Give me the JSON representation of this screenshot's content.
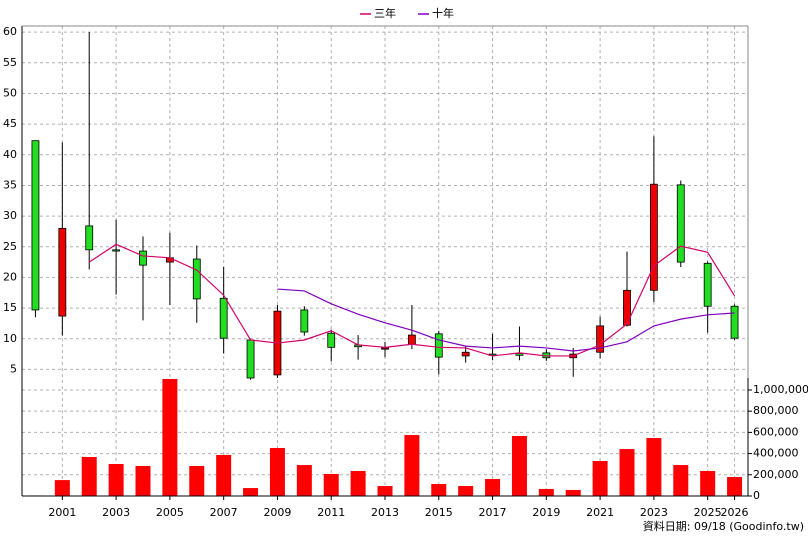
{
  "chart_data": [
    {
      "type": "candlestick",
      "legend": "top",
      "categories": [
        null,
        "2001",
        null,
        "2003",
        null,
        "2005",
        null,
        "2007",
        null,
        "2009",
        null,
        "2011",
        null,
        "2013",
        null,
        "2015",
        null,
        "2017",
        null,
        "2019",
        null,
        "2021",
        null,
        "2023",
        null,
        "2025",
        "2026"
      ],
      "open": [
        42.3,
        13.7,
        28.4,
        24.5,
        24.3,
        22.5,
        23.0,
        16.6,
        9.8,
        4.1,
        14.7,
        10.9,
        9.0,
        8.3,
        9.1,
        10.8,
        7.2,
        7.5,
        7.6,
        7.7,
        6.9,
        7.8,
        12.2,
        17.9,
        35.1,
        22.3,
        15.3
      ],
      "high": [
        42.3,
        42.0,
        60.0,
        29.4,
        26.7,
        27.3,
        25.2,
        21.7,
        10.0,
        15.5,
        15.3,
        11.5,
        10.6,
        9.5,
        15.5,
        11.3,
        8.8,
        10.8,
        12.0,
        8.3,
        8.5,
        13.6,
        24.2,
        43.0,
        35.8,
        22.6,
        15.6
      ],
      "low": [
        13.5,
        10.5,
        21.3,
        17.2,
        13.0,
        15.5,
        12.6,
        7.6,
        3.3,
        3.6,
        10.5,
        6.3,
        6.6,
        7.0,
        8.3,
        4.2,
        6.1,
        6.5,
        6.5,
        6.4,
        3.8,
        6.8,
        12.0,
        16.0,
        21.7,
        11.0,
        9.8
      ],
      "close": [
        14.7,
        28.0,
        24.5,
        24.3,
        22.0,
        23.2,
        16.5,
        10.1,
        3.6,
        14.5,
        11.1,
        8.6,
        8.7,
        8.5,
        10.6,
        7.0,
        7.8,
        7.3,
        7.3,
        6.9,
        7.5,
        12.1,
        17.9,
        35.2,
        22.5,
        15.3,
        10.1
      ],
      "up_color": "#ee0000",
      "down_color": "#22dd22",
      "series": [
        {
          "name": "三年",
          "color": "#d6006b",
          "values": [
            null,
            null,
            22.5,
            25.4,
            23.5,
            23.2,
            21.2,
            17.1,
            9.8,
            9.3,
            9.8,
            11.3,
            9.0,
            8.6,
            9.1,
            8.6,
            8.5,
            7.2,
            7.7,
            7.2,
            7.2,
            9.0,
            12.4,
            21.9,
            25.1,
            24.1,
            17.0
          ]
        },
        {
          "name": "十年",
          "color": "#8000c0",
          "values": [
            null,
            null,
            null,
            null,
            null,
            null,
            null,
            null,
            null,
            18.1,
            17.8,
            15.7,
            14.0,
            12.6,
            11.4,
            9.8,
            8.8,
            8.5,
            8.8,
            8.5,
            8.0,
            8.5,
            9.5,
            12.1,
            13.2,
            13.9,
            14.2
          ]
        }
      ],
      "ylim": [
        3.6,
        61
      ],
      "yticks": [
        5,
        10,
        15,
        20,
        25,
        30,
        35,
        40,
        45,
        50,
        55,
        60
      ],
      "grid": true
    },
    {
      "type": "bar",
      "color": "#ff0000",
      "values": [
        5000,
        150000,
        368000,
        302000,
        283000,
        1104000,
        283000,
        387000,
        75000,
        453000,
        292000,
        208000,
        236000,
        94000,
        575000,
        113000,
        94000,
        160000,
        566000,
        66000,
        57000,
        330000,
        443000,
        547000,
        292000,
        236000,
        179000
      ],
      "ylim": [
        0,
        1113000
      ],
      "yticks": [
        0,
        {
          "value": 200000,
          "label": "200,000"
        },
        {
          "value": 400000,
          "label": "400,000"
        },
        {
          "value": 600000,
          "label": "600,000"
        },
        {
          "value": 800000,
          "label": "800,000"
        },
        {
          "value": 1000000,
          "label": "1,000,000"
        }
      ],
      "grid": true
    }
  ],
  "footer": "資料日期: 09/18 (Goodinfo.tw)"
}
